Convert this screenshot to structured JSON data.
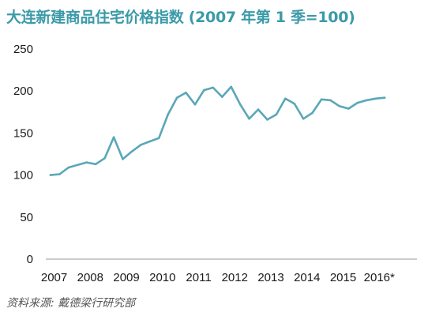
{
  "chart_data": {
    "type": "line",
    "title": "大连新建商品住宅价格指数 (2007 年第 1 季=100)",
    "source": "资料来源: 戴德梁行研究部",
    "xlabel": "",
    "ylabel": "",
    "ylim": [
      0,
      250
    ],
    "yticks": [
      0,
      50,
      100,
      150,
      200,
      250
    ],
    "xlim": [
      2007,
      2016.75
    ],
    "xtick_labels": [
      "2007",
      "2008",
      "2009",
      "2010",
      "2011",
      "2012",
      "2013",
      "2014",
      "2015",
      "2016*"
    ],
    "xtick_values": [
      2007,
      2008,
      2009,
      2010,
      2011,
      2012,
      2013,
      2014,
      2015,
      2016
    ],
    "grid": false,
    "colors": {
      "line": "#5aa7b8",
      "title": "#3b9aa8",
      "axis": "#999999"
    },
    "series": [
      {
        "x": [
          2007.0,
          2007.25,
          2007.5,
          2007.75,
          2008.0,
          2008.25,
          2008.5,
          2008.75,
          2009.0,
          2009.25,
          2009.5,
          2009.75,
          2010.0,
          2010.25,
          2010.5,
          2010.75,
          2011.0,
          2011.25,
          2011.5,
          2011.75,
          2012.0,
          2012.25,
          2012.5,
          2012.75,
          2013.0,
          2013.25,
          2013.5,
          2013.75,
          2014.0,
          2014.25,
          2014.5,
          2014.75,
          2015.0,
          2015.25,
          2015.5,
          2015.75,
          2016.0,
          2016.25
        ],
        "values": [
          100,
          101,
          109,
          112,
          115,
          113,
          120,
          145,
          119,
          128,
          136,
          140,
          144,
          172,
          192,
          198,
          184,
          201,
          204,
          193,
          205,
          184,
          167,
          178,
          166,
          172,
          191,
          185,
          167,
          174,
          190,
          189,
          182,
          179,
          186,
          189,
          191,
          192
        ]
      }
    ]
  }
}
